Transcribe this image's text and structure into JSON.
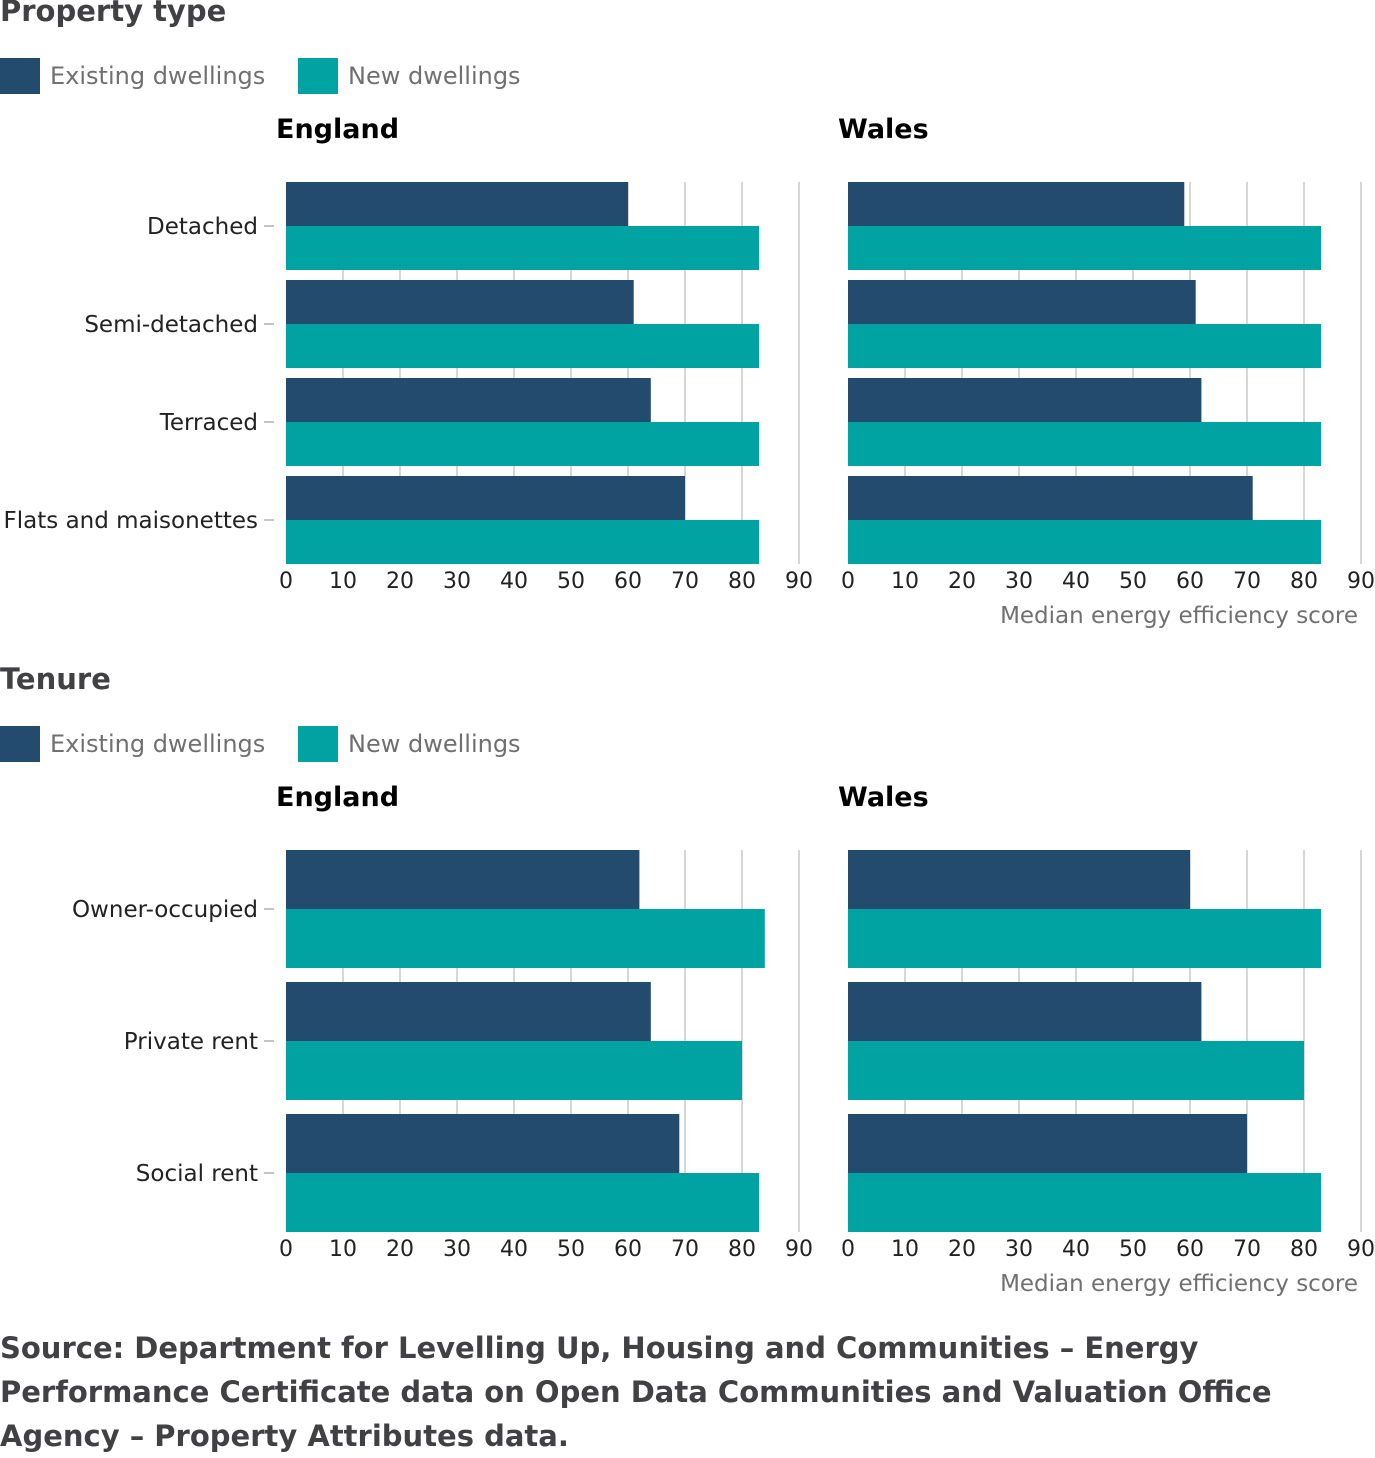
{
  "colors": {
    "existing": "#234b6e",
    "new": "#00a3a1",
    "grid": "#c8c8c8",
    "axis_text": "#222222",
    "label_muted": "#707071"
  },
  "sections": [
    {
      "id": "property",
      "title": "Property type",
      "legend": [
        {
          "label": "Existing dwellings",
          "color_key": "existing"
        },
        {
          "label": "New dwellings",
          "color_key": "new"
        }
      ]
    },
    {
      "id": "tenure",
      "title": "Tenure",
      "legend": [
        {
          "label": "Existing dwellings",
          "color_key": "existing"
        },
        {
          "label": "New dwellings",
          "color_key": "new"
        }
      ]
    }
  ],
  "chart_data": [
    {
      "type": "bar",
      "orientation": "horizontal",
      "section": "Property type",
      "title": "England",
      "xlabel": "",
      "xlim": [
        0,
        90
      ],
      "xticks": [
        0,
        10,
        20,
        30,
        40,
        50,
        60,
        70,
        80,
        90
      ],
      "categories": [
        "Detached",
        "Semi-detached",
        "Terraced",
        "Flats and maisonettes"
      ],
      "series": [
        {
          "name": "Existing dwellings",
          "values": [
            60,
            61,
            64,
            70
          ]
        },
        {
          "name": "New dwellings",
          "values": [
            83,
            83,
            83,
            83
          ]
        }
      ],
      "grid": true,
      "legend": "top-left"
    },
    {
      "type": "bar",
      "orientation": "horizontal",
      "section": "Property type",
      "title": "Wales",
      "xlabel": "Median energy efficiency score",
      "xlim": [
        0,
        90
      ],
      "xticks": [
        0,
        10,
        20,
        30,
        40,
        50,
        60,
        70,
        80,
        90
      ],
      "categories": [
        "Detached",
        "Semi-detached",
        "Terraced",
        "Flats and maisonettes"
      ],
      "series": [
        {
          "name": "Existing dwellings",
          "values": [
            59,
            61,
            62,
            71
          ]
        },
        {
          "name": "New dwellings",
          "values": [
            83,
            83,
            83,
            83
          ]
        }
      ],
      "grid": true,
      "legend": "top-left"
    },
    {
      "type": "bar",
      "orientation": "horizontal",
      "section": "Tenure",
      "title": "England",
      "xlabel": "",
      "xlim": [
        0,
        90
      ],
      "xticks": [
        0,
        10,
        20,
        30,
        40,
        50,
        60,
        70,
        80,
        90
      ],
      "categories": [
        "Owner-occupied",
        "Private rent",
        "Social rent"
      ],
      "series": [
        {
          "name": "Existing dwellings",
          "values": [
            62,
            64,
            69
          ]
        },
        {
          "name": "New dwellings",
          "values": [
            84,
            80,
            83
          ]
        }
      ],
      "grid": true,
      "legend": "top-left"
    },
    {
      "type": "bar",
      "orientation": "horizontal",
      "section": "Tenure",
      "title": "Wales",
      "xlabel": "Median energy efficiency score",
      "xlim": [
        0,
        90
      ],
      "xticks": [
        0,
        10,
        20,
        30,
        40,
        50,
        60,
        70,
        80,
        90
      ],
      "categories": [
        "Owner-occupied",
        "Private rent",
        "Social rent"
      ],
      "series": [
        {
          "name": "Existing dwellings",
          "values": [
            60,
            62,
            70
          ]
        },
        {
          "name": "New dwellings",
          "values": [
            83,
            80,
            83
          ]
        }
      ],
      "grid": true,
      "legend": "top-left"
    }
  ],
  "source": "Source: Department for Levelling Up, Housing and Communities – Energy Performance Certificate data on Open Data Communities and Valuation Office Agency – Property Attributes data."
}
